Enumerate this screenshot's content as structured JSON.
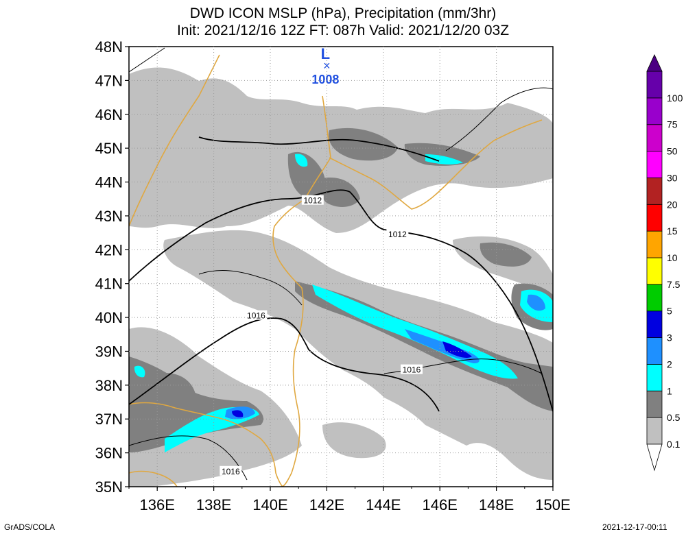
{
  "title": {
    "line1": "DWD ICON MSLP (hPa), Precipitation (mm/3hr)",
    "line2": "Init: 2021/12/16 12Z  FT: 087h  Valid: 2021/12/20 03Z"
  },
  "map": {
    "lat_labels": [
      "48N",
      "47N",
      "46N",
      "45N",
      "44N",
      "43N",
      "42N",
      "41N",
      "40N",
      "39N",
      "38N",
      "37N",
      "36N",
      "35N"
    ],
    "lon_labels": [
      "136E",
      "138E",
      "140E",
      "142E",
      "144E",
      "146E",
      "148E",
      "150E"
    ],
    "isobar_labels": [
      {
        "text": "1012",
        "lon": 141.5,
        "lat": 43.45
      },
      {
        "text": "1012",
        "lon": 144.5,
        "lat": 42.45
      },
      {
        "text": "1016",
        "lon": 139.5,
        "lat": 40.05
      },
      {
        "text": "1016",
        "lon": 145.0,
        "lat": 38.45
      },
      {
        "text": "1016",
        "lon": 138.6,
        "lat": 35.45
      }
    ],
    "low_center": {
      "symbol": "L",
      "value": "1008",
      "lon": 142.0,
      "lat": 47.55
    }
  },
  "colorbar": {
    "labels": [
      "0.1",
      "0.5",
      "1",
      "2",
      "3",
      "5",
      "7.5",
      "10",
      "15",
      "20",
      "30",
      "50",
      "75",
      "100"
    ],
    "colors": [
      "#c0c0c0",
      "#808080",
      "#00ffff",
      "#1e90ff",
      "#0000e0",
      "#00cc00",
      "#ffff00",
      "#ffa500",
      "#ff0000",
      "#b22222",
      "#ff00ff",
      "#cc00cc",
      "#9900cc",
      "#6600aa"
    ]
  },
  "colors": {
    "light_precip": "#c0c0c0",
    "mod_precip": "#808080",
    "cyan": "#00ffff",
    "blue2": "#1e90ff",
    "blue3": "#0000e0",
    "coast": "#e0a840",
    "isobar": "#000000",
    "low_marker": "#2050e0"
  },
  "footer": {
    "left": "GrADS/COLA",
    "right": "2021-12-17-00:11"
  }
}
